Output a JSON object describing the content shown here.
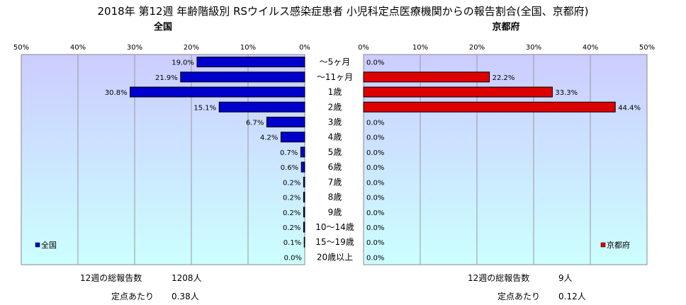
{
  "title": "2018年 第12週 年齢階級別 RSウイルス感染症患者 小児科定点医療機関からの報告割合(全国、京都府)",
  "colors": {
    "national": "#0000cc",
    "kyoto": "#dd0000",
    "plot_top": "#ccccff",
    "plot_bottom": "#ccffff"
  },
  "chart_data": {
    "type": "bar",
    "orientation": "horizontal-butterfly",
    "categories": [
      "～5ヶ月",
      "～11ヶ月",
      "1歳",
      "2歳",
      "3歳",
      "4歳",
      "5歳",
      "6歳",
      "7歳",
      "8歳",
      "9歳",
      "10～14歳",
      "15～19歳",
      "20歳以上"
    ],
    "series": [
      {
        "name": "全国",
        "panel_title": "全国",
        "values": [
          19.0,
          21.9,
          30.8,
          15.1,
          6.7,
          4.2,
          0.7,
          0.6,
          0.2,
          0.2,
          0.2,
          0.2,
          0.1,
          0.0
        ],
        "labels": [
          "19.0%",
          "21.9%",
          "30.8%",
          "15.1%",
          "6.7%",
          "4.2%",
          "0.7%",
          "0.6%",
          "0.2%",
          "0.2%",
          "0.2%",
          "0.2%",
          "0.1%",
          "0.0%"
        ],
        "legend_position": "bottom-left"
      },
      {
        "name": "京都府",
        "panel_title": "京都府",
        "values": [
          0.0,
          22.2,
          33.3,
          44.4,
          0.0,
          0.0,
          0.0,
          0.0,
          0.0,
          0.0,
          0.0,
          0.0,
          0.0,
          0.0
        ],
        "labels": [
          "0.0%",
          "22.2%",
          "33.3%",
          "44.4%",
          "0.0%",
          "0.0%",
          "0.0%",
          "0.0%",
          "0.0%",
          "0.0%",
          "0.0%",
          "0.0%",
          "0.0%",
          "0.0%"
        ],
        "legend_position": "bottom-right"
      }
    ],
    "xlim": [
      0,
      50
    ],
    "xticks": [
      "50%",
      "40%",
      "30%",
      "20%",
      "10%",
      "0%"
    ],
    "xticks_right": [
      "0%",
      "10%",
      "20%",
      "30%",
      "40%",
      "50%"
    ],
    "grid": "vertical"
  },
  "footer": {
    "national": {
      "total_label": "12週の総報告数",
      "total_value": "1208人",
      "per_label": "定点あたり",
      "per_value": "0.38人"
    },
    "kyoto": {
      "total_label": "12週の総報告数",
      "total_value": "9人",
      "per_label": "定点あたり",
      "per_value": "0.12人"
    }
  }
}
